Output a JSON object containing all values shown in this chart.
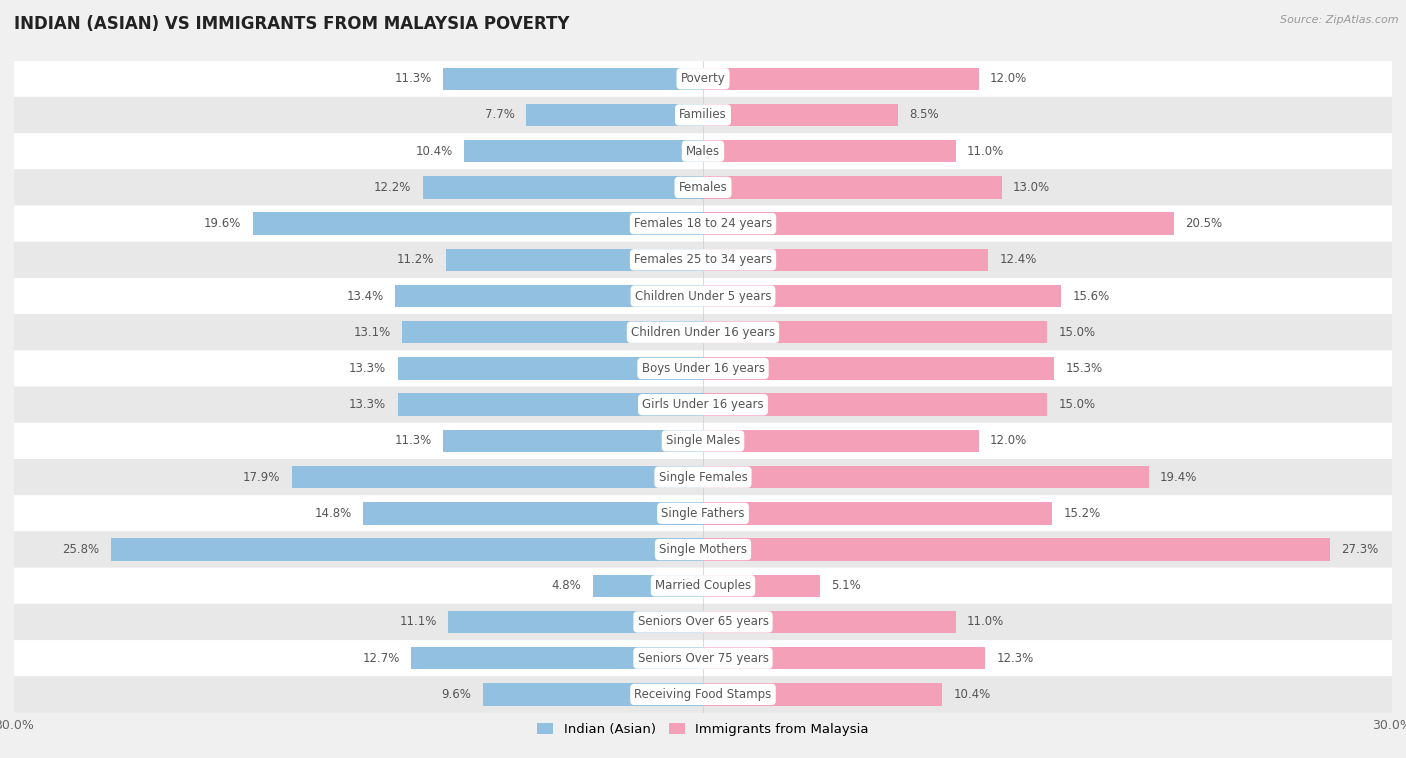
{
  "title": "INDIAN (ASIAN) VS IMMIGRANTS FROM MALAYSIA POVERTY",
  "source": "Source: ZipAtlas.com",
  "categories": [
    "Poverty",
    "Families",
    "Males",
    "Females",
    "Females 18 to 24 years",
    "Females 25 to 34 years",
    "Children Under 5 years",
    "Children Under 16 years",
    "Boys Under 16 years",
    "Girls Under 16 years",
    "Single Males",
    "Single Females",
    "Single Fathers",
    "Single Mothers",
    "Married Couples",
    "Seniors Over 65 years",
    "Seniors Over 75 years",
    "Receiving Food Stamps"
  ],
  "indian_asian": [
    11.3,
    7.7,
    10.4,
    12.2,
    19.6,
    11.2,
    13.4,
    13.1,
    13.3,
    13.3,
    11.3,
    17.9,
    14.8,
    25.8,
    4.8,
    11.1,
    12.7,
    9.6
  ],
  "immigrants_malaysia": [
    12.0,
    8.5,
    11.0,
    13.0,
    20.5,
    12.4,
    15.6,
    15.0,
    15.3,
    15.0,
    12.0,
    19.4,
    15.2,
    27.3,
    5.1,
    11.0,
    12.3,
    10.4
  ],
  "indian_color": "#92c0e0",
  "malaysia_color": "#f4a0b8",
  "indian_label": "Indian (Asian)",
  "malaysia_label": "Immigrants from Malaysia",
  "xlim": 30.0,
  "background_color": "#f0f0f0",
  "bar_background_even": "#ffffff",
  "bar_background_odd": "#e8e8e8",
  "label_bg": "#ffffff",
  "label_text_color": "#555555",
  "value_text_color": "#555555",
  "title_color": "#222222",
  "source_color": "#999999"
}
